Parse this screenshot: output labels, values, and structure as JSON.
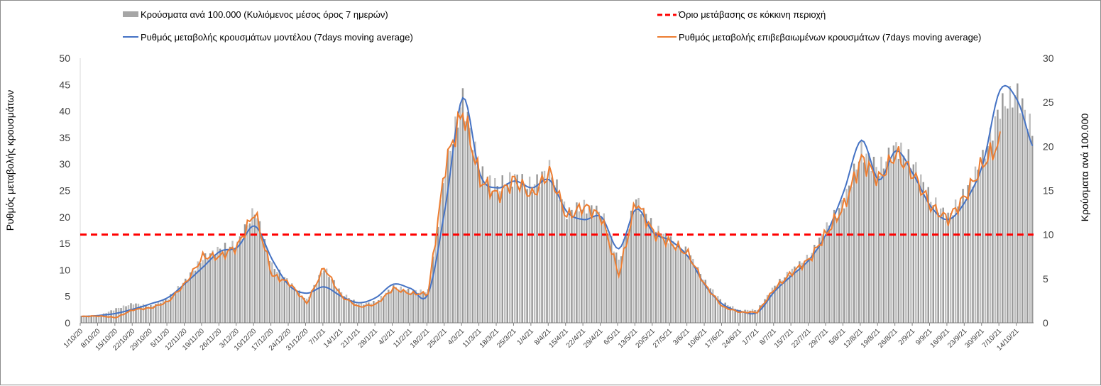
{
  "chart_data": {
    "type": "bar+line",
    "legend": {
      "bars": "Κρούσματα ανά 100.000 (Κυλιόμενος μέσος όρος 7 ημερών)",
      "threshold": "Όριο μετάβασης  σε κόκκινη περιοχή",
      "model": "Ρυθμός μεταβολής κρουσμάτων μοντέλου (7days moving average)",
      "confirmed": "Ρυθμός μεταβολής επιβεβαιωμένων κρουσμάτων (7days moving average)"
    },
    "ylabel_left": "Ρυθμός μεταβολής κρουσμάτων",
    "ylabel_right": "Κρούσματα ανά 100.000",
    "ylim_left": [
      0,
      50
    ],
    "yticks_left": [
      0,
      5,
      10,
      15,
      20,
      25,
      30,
      35,
      40,
      45,
      50
    ],
    "ylim_right": [
      0,
      30
    ],
    "yticks_right": [
      0,
      5,
      10,
      15,
      20,
      25,
      30
    ],
    "x_start": "1/10/20",
    "days": 385,
    "sample_step_days": 7,
    "xticks": [
      "1/10/20",
      "8/10/20",
      "15/10/20",
      "22/10/20",
      "29/10/20",
      "5/11/20",
      "12/11/20",
      "19/11/20",
      "26/11/20",
      "3/12/20",
      "10/12/20",
      "17/12/20",
      "24/12/20",
      "31/12/20",
      "7/1/21",
      "14/1/21",
      "21/1/21",
      "28/1/21",
      "4/2/21",
      "11/2/21",
      "18/2/21",
      "25/2/21",
      "4/3/21",
      "11/3/21",
      "18/3/21",
      "25/3/21",
      "1/4/21",
      "8/4/21",
      "15/4/21",
      "22/4/21",
      "29/4/21",
      "6/5/21",
      "13/5/21",
      "20/5/21",
      "27/5/21",
      "3/6/21",
      "10/6/21",
      "17/6/21",
      "24/6/21",
      "1/7/21",
      "8/7/21",
      "15/7/21",
      "22/7/21",
      "29/7/21",
      "5/8/21",
      "12/8/21",
      "19/8/21",
      "26/8/21",
      "2/9/21",
      "9/9/21",
      "16/9/21",
      "23/9/21",
      "30/9/21",
      "7/10/21",
      "14/10/21"
    ],
    "threshold_right_axis": 10,
    "series": [
      {
        "name": "model",
        "axis": "left",
        "color": "#4472c4",
        "values": [
          1.2,
          1.4,
          1.8,
          2.6,
          3.6,
          4.8,
          7.5,
          10.5,
          13.5,
          14.3,
          18.3,
          12,
          7,
          5.6,
          6.8,
          5,
          3.8,
          4.8,
          7.3,
          6.5,
          5.5,
          22,
          42.5,
          28,
          25.5,
          26.8,
          25.5,
          27,
          21,
          19.5,
          20,
          14,
          21.5,
          17,
          15.5,
          12.5,
          7,
          3.5,
          2.2,
          2,
          6,
          9,
          12,
          17,
          25,
          34.5,
          27,
          32.5,
          28,
          22,
          19.5,
          23,
          30,
          44,
          42,
          32.5
        ]
      },
      {
        "name": "confirmed",
        "axis": "left",
        "color": "#ed7d31",
        "values": [
          1.2,
          1.3,
          1.0,
          2.5,
          2.8,
          4,
          7.5,
          12.5,
          12.5,
          14.5,
          21,
          9,
          7.5,
          3.7,
          10.5,
          5,
          3,
          3.5,
          6.5,
          5.5,
          5.5,
          30,
          40,
          27,
          24,
          27,
          24,
          28.5,
          20,
          22,
          20,
          9,
          23,
          17,
          15,
          13,
          7,
          3,
          2,
          2,
          6.5,
          9.5,
          12,
          17,
          22,
          31,
          27,
          32,
          28,
          22,
          19.5,
          24,
          30,
          34
        ]
      },
      {
        "name": "cases_per_100k",
        "axis": "right",
        "color": "#a6a6a6",
        "values": [
          0.8,
          0.8,
          1.6,
          2.2,
          1.9,
          2.8,
          4.8,
          7.3,
          8.4,
          9,
          12.8,
          6.5,
          4.6,
          2.6,
          6.2,
          3.4,
          2.1,
          2.4,
          4.1,
          3.6,
          3.6,
          17.5,
          25.5,
          17,
          15.5,
          16.5,
          15.5,
          17.5,
          12.5,
          13.2,
          12.5,
          7,
          14,
          10.8,
          9.4,
          8,
          4.6,
          2.3,
          1.4,
          1.5,
          4.2,
          6,
          7.5,
          10.8,
          13.8,
          19.5,
          17.4,
          20,
          18,
          14,
          12,
          14.8,
          18.5,
          24.5,
          26,
          21
        ]
      },
      {
        "name": "threshold",
        "axis": "right",
        "color": "#ff0000",
        "values": [
          10
        ]
      }
    ]
  }
}
